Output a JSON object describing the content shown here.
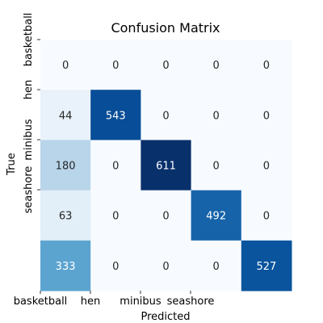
{
  "chart_data": {
    "type": "heatmap",
    "title": "Confusion Matrix",
    "xlabel": "Predicted",
    "ylabel": "True",
    "x_tick_labels": [
      "basketball",
      "hen",
      "minibus",
      "seashore",
      ""
    ],
    "y_tick_labels": [
      "basketball",
      "hen",
      "minibus",
      "seashore",
      ""
    ],
    "rows": [
      [
        0,
        0,
        0,
        0,
        0
      ],
      [
        44,
        543,
        0,
        0,
        0
      ],
      [
        180,
        0,
        611,
        0,
        0
      ],
      [
        63,
        0,
        0,
        492,
        0
      ],
      [
        333,
        0,
        0,
        0,
        527
      ]
    ],
    "colormap": "Blues",
    "vmin": 0,
    "vmax": 611,
    "colorbar": false,
    "colors": {
      "low": "#f7fbff",
      "high": "#08306b",
      "text_dark": "#262626",
      "text_light": "#ffffff"
    }
  }
}
